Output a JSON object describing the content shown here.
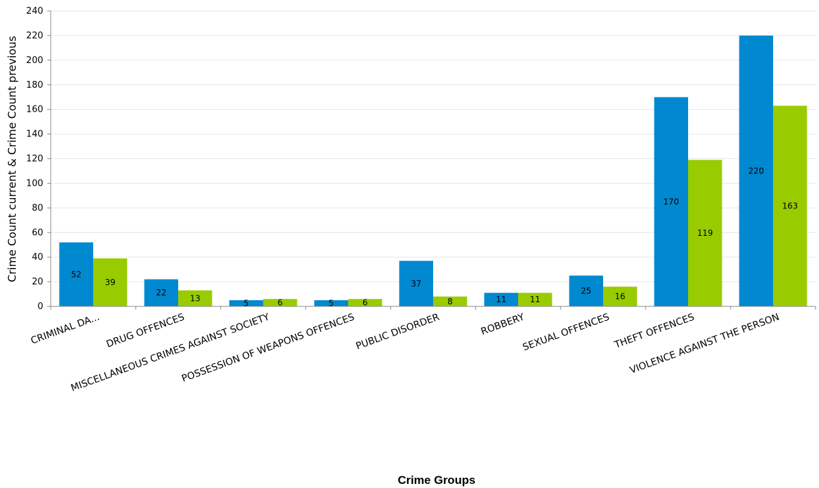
{
  "chart_data": {
    "type": "bar",
    "xlabel": "Crime Groups",
    "ylabel": "Crime Count current & Crime Count previous",
    "ylim": [
      0,
      240
    ],
    "ytick_step": 20,
    "grid": true,
    "categories": [
      "CRIMINAL DA...",
      "DRUG OFFENCES",
      "MISCELLANEOUS CRIMES AGAINST SOCIETY",
      "POSSESSION OF WEAPONS OFFENCES",
      "PUBLIC DISORDER",
      "ROBBERY",
      "SEXUAL OFFENCES",
      "THEFT OFFENCES",
      "VIOLENCE AGAINST THE PERSON"
    ],
    "series": [
      {
        "color": "#0089d0",
        "values": [
          52,
          22,
          5,
          5,
          37,
          11,
          25,
          170,
          220
        ]
      },
      {
        "color": "#99cc00",
        "values": [
          39,
          13,
          6,
          6,
          8,
          11,
          16,
          119,
          163
        ]
      }
    ]
  }
}
